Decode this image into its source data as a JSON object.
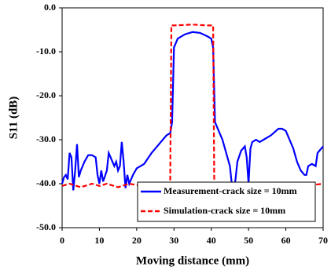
{
  "chart_data": {
    "type": "line",
    "xlabel": "Moving distance (mm)",
    "ylabel": "S11 (dB)",
    "xlim": [
      0,
      70
    ],
    "xticks": [
      0,
      10,
      20,
      30,
      40,
      50,
      60,
      70
    ],
    "ylim": [
      -50,
      0
    ],
    "yticks": [
      {
        "value": -50,
        "label": "-50.0"
      },
      {
        "value": -40,
        "label": "-40.0"
      },
      {
        "value": -30,
        "label": "-30.0"
      },
      {
        "value": -20,
        "label": "-20.0"
      },
      {
        "value": -10,
        "label": "-10.0"
      },
      {
        "value": 0,
        "label": "0.0"
      }
    ],
    "grid": false,
    "legend": "lower right",
    "series": [
      {
        "name": "Measurement-crack size = 10mm",
        "color": "#0000ff",
        "line_style": "solid",
        "x": [
          0,
          0.5,
          1,
          1.5,
          2,
          2.5,
          3,
          3.5,
          4,
          4.5,
          5,
          6,
          7,
          8,
          9,
          9.5,
          10,
          10.5,
          11,
          12,
          12.5,
          13,
          14,
          14.5,
          15,
          15.5,
          16,
          16.5,
          17,
          17.5,
          18,
          19,
          20,
          22,
          24,
          26,
          28,
          29,
          29.5,
          30,
          31,
          33,
          35,
          37,
          39,
          40,
          40.5,
          41,
          42,
          43,
          44,
          45,
          45.5,
          46,
          46.5,
          47,
          48,
          49,
          49.5,
          50,
          50.5,
          51,
          52,
          53,
          54,
          56,
          58,
          59,
          60,
          61,
          62,
          63,
          64,
          65,
          65.5,
          66,
          67,
          68,
          68.5,
          69,
          70
        ],
        "values": [
          -40,
          -38.5,
          -38,
          -39,
          -33,
          -34,
          -41.5,
          -37,
          -31,
          -38.5,
          -37,
          -35,
          -33.5,
          -33.5,
          -34,
          -38,
          -40,
          -37,
          -39.5,
          -37,
          -33,
          -34,
          -36,
          -35,
          -37,
          -36,
          -30.5,
          -35,
          -41,
          -38,
          -40,
          -38,
          -36.5,
          -35.5,
          -33,
          -31,
          -29,
          -28.5,
          -26,
          -9,
          -7,
          -6,
          -5.5,
          -5.7,
          -6.5,
          -7,
          -9,
          -26,
          -28,
          -30,
          -33,
          -36,
          -40,
          -41.5,
          -39,
          -35,
          -32.5,
          -31.5,
          -34,
          -40,
          -32,
          -30.5,
          -30,
          -30.5,
          -30,
          -29,
          -27.5,
          -27.5,
          -28,
          -30,
          -32,
          -35,
          -37,
          -38,
          -38,
          -36,
          -35.5,
          -36,
          -33,
          -32.5,
          -31.5
        ]
      },
      {
        "name": "Simulation-crack size = 10mm",
        "color": "#ff0000",
        "line_style": "dashed",
        "x": [
          0,
          2,
          5,
          8,
          10,
          12,
          15,
          18,
          20,
          25,
          28.5,
          29,
          29.3,
          30,
          35,
          39,
          40.5,
          40.8,
          42,
          45,
          48,
          50,
          55,
          60,
          65,
          70
        ],
        "values": [
          -40.5,
          -40,
          -40.8,
          -40,
          -40.5,
          -40,
          -40.8,
          -40,
          -40.3,
          -40.2,
          -40,
          -39,
          -4,
          -4,
          -3.8,
          -4,
          -4,
          -40,
          -40.5,
          -40,
          -40.8,
          -40,
          -40.5,
          -40,
          -40.5,
          -40
        ]
      }
    ]
  }
}
